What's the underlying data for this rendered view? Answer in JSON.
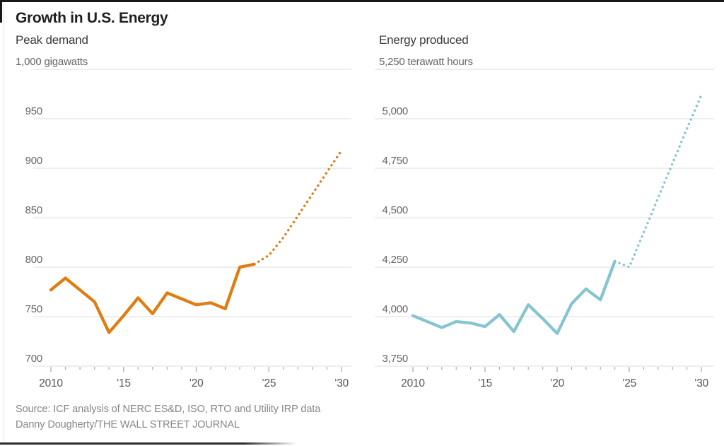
{
  "title": "Growth in U.S. Energy",
  "source": {
    "line1": "Source: ICF analysis of NERC ES&D, ISO, RTO and Utility IRP data",
    "line2": "Danny Dougherty/THE WALL STREET JOURNAL"
  },
  "colors": {
    "orange": "#E07C10",
    "blue": "#86C5CF",
    "gridline": "#DCDCDC",
    "tick": "#A8A8A8",
    "axis_label": "#666666",
    "x_label": "#555555"
  },
  "chart_data": [
    {
      "type": "line",
      "subtitle": "Peak demand",
      "unit_label": "1,000 gigawatts",
      "color_key": "orange",
      "xlim": [
        2010,
        2030
      ],
      "ylim": [
        700,
        1000
      ],
      "grid": true,
      "yticks": [
        1000,
        950,
        900,
        850,
        800,
        750,
        700
      ],
      "ytick_labels": [
        "1,000 gigawatts",
        "950",
        "900",
        "850",
        "800",
        "750",
        "700"
      ],
      "xticks_labeled": [
        2010,
        2015,
        2020,
        2025,
        2030
      ],
      "xtick_labels": [
        "2010",
        "’15",
        "’20",
        "’25",
        "’30"
      ],
      "series": [
        {
          "name": "historical",
          "style": "solid",
          "x": [
            2010,
            2011,
            2012,
            2013,
            2014,
            2015,
            2016,
            2017,
            2018,
            2019,
            2020,
            2021,
            2022,
            2023,
            2024
          ],
          "values": [
            777,
            789,
            777,
            765,
            734,
            751,
            769,
            753,
            774,
            768,
            762,
            764,
            758,
            800,
            803
          ]
        },
        {
          "name": "projected",
          "style": "dotted",
          "x": [
            2024,
            2025,
            2026,
            2027,
            2028,
            2029,
            2030
          ],
          "values": [
            803,
            812,
            830,
            852,
            874,
            896,
            918
          ]
        }
      ]
    },
    {
      "type": "line",
      "subtitle": "Energy produced",
      "unit_label": "5,250 terawatt hours",
      "color_key": "blue",
      "xlim": [
        2010,
        2030
      ],
      "ylim": [
        3750,
        5250
      ],
      "grid": true,
      "yticks": [
        5250,
        5000,
        4750,
        4500,
        4250,
        4000,
        3750
      ],
      "ytick_labels": [
        "5,250 terawatt hours",
        "5,000",
        "4,750",
        "4,500",
        "4,250",
        "4,000",
        "3,750"
      ],
      "xticks_labeled": [
        2010,
        2015,
        2020,
        2025,
        2030
      ],
      "xtick_labels": [
        "2010",
        "’15",
        "’20",
        "’25",
        "’30"
      ],
      "series": [
        {
          "name": "historical",
          "style": "solid",
          "x": [
            2010,
            2011,
            2012,
            2013,
            2014,
            2015,
            2016,
            2017,
            2018,
            2019,
            2020,
            2021,
            2022,
            2023,
            2024
          ],
          "values": [
            4005,
            3975,
            3945,
            3975,
            3968,
            3950,
            4010,
            3925,
            4060,
            3990,
            3915,
            4065,
            4140,
            4085,
            4280
          ]
        },
        {
          "name": "projected",
          "style": "dotted",
          "x": [
            2024,
            2025,
            2026,
            2027,
            2028,
            2029,
            2030
          ],
          "values": [
            4280,
            4250,
            4425,
            4600,
            4775,
            4950,
            5120
          ]
        }
      ]
    }
  ]
}
